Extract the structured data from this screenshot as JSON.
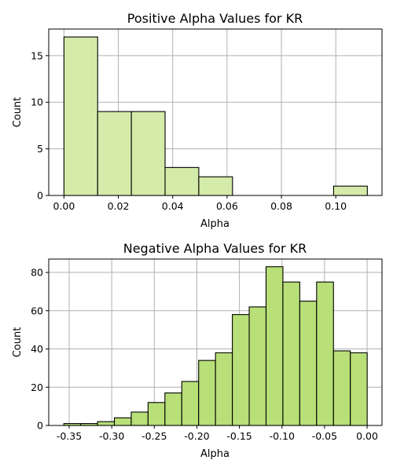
{
  "chart_data": [
    {
      "type": "bar",
      "title": "Positive Alpha Values for KR",
      "xlabel": "Alpha",
      "ylabel": "Count",
      "xlim": [
        -0.0056,
        0.117
      ],
      "ylim": [
        0,
        17.85
      ],
      "xticks": [
        0.0,
        0.02,
        0.04,
        0.06,
        0.08,
        0.1
      ],
      "xtick_labels": [
        "0.00",
        "0.02",
        "0.04",
        "0.06",
        "0.08",
        "0.10"
      ],
      "yticks": [
        0,
        5,
        10,
        15
      ],
      "ytick_labels": [
        "0",
        "5",
        "10",
        "15"
      ],
      "grid": true,
      "bins": [
        {
          "x0": 0.0,
          "x1": 0.0124,
          "count": 17
        },
        {
          "x0": 0.0124,
          "x1": 0.0248,
          "count": 9
        },
        {
          "x0": 0.0248,
          "x1": 0.0372,
          "count": 9
        },
        {
          "x0": 0.0372,
          "x1": 0.0496,
          "count": 3
        },
        {
          "x0": 0.0496,
          "x1": 0.062,
          "count": 2
        },
        {
          "x0": 0.062,
          "x1": 0.0744,
          "count": 0
        },
        {
          "x0": 0.0744,
          "x1": 0.0868,
          "count": 0
        },
        {
          "x0": 0.0868,
          "x1": 0.0992,
          "count": 0
        },
        {
          "x0": 0.0992,
          "x1": 0.1116,
          "count": 1
        }
      ],
      "bar_color": "#d4ebaa",
      "edge_color": "#000000"
    },
    {
      "type": "bar",
      "title": "Negative Alpha Values for KR",
      "xlabel": "Alpha",
      "ylabel": "Count",
      "xlim": [
        -0.374,
        0.0175
      ],
      "ylim": [
        0,
        87
      ],
      "xticks": [
        -0.35,
        -0.3,
        -0.25,
        -0.2,
        -0.15,
        -0.1,
        -0.05,
        0.0
      ],
      "xtick_labels": [
        "-0.35",
        "-0.30",
        "-0.25",
        "-0.20",
        "-0.15",
        "-0.10",
        "-0.05",
        "0.00"
      ],
      "yticks": [
        0,
        20,
        40,
        60,
        80
      ],
      "ytick_labels": [
        "0",
        "20",
        "40",
        "60",
        "80"
      ],
      "grid": true,
      "bins": [
        {
          "x0": -0.3563,
          "x1": -0.3365,
          "count": 1
        },
        {
          "x0": -0.3365,
          "x1": -0.3167,
          "count": 1
        },
        {
          "x0": -0.3167,
          "x1": -0.2969,
          "count": 2
        },
        {
          "x0": -0.2969,
          "x1": -0.2771,
          "count": 4
        },
        {
          "x0": -0.2771,
          "x1": -0.2573,
          "count": 7
        },
        {
          "x0": -0.2573,
          "x1": -0.2375,
          "count": 12
        },
        {
          "x0": -0.2375,
          "x1": -0.2177,
          "count": 17
        },
        {
          "x0": -0.2177,
          "x1": -0.1979,
          "count": 23
        },
        {
          "x0": -0.1979,
          "x1": -0.1781,
          "count": 34
        },
        {
          "x0": -0.1781,
          "x1": -0.1583,
          "count": 38
        },
        {
          "x0": -0.1583,
          "x1": -0.1385,
          "count": 58
        },
        {
          "x0": -0.1385,
          "x1": -0.1187,
          "count": 62
        },
        {
          "x0": -0.1187,
          "x1": -0.0989,
          "count": 83
        },
        {
          "x0": -0.0989,
          "x1": -0.0791,
          "count": 75
        },
        {
          "x0": -0.0791,
          "x1": -0.0593,
          "count": 65
        },
        {
          "x0": -0.0593,
          "x1": -0.0395,
          "count": 75
        },
        {
          "x0": -0.0395,
          "x1": -0.0197,
          "count": 39
        },
        {
          "x0": -0.0197,
          "x1": 0.0001,
          "count": 38
        }
      ],
      "bar_color": "#b8df78",
      "edge_color": "#000000"
    }
  ],
  "colors": {
    "grid": "#b0b0b0",
    "axes": "#000000",
    "background": "#ffffff"
  }
}
